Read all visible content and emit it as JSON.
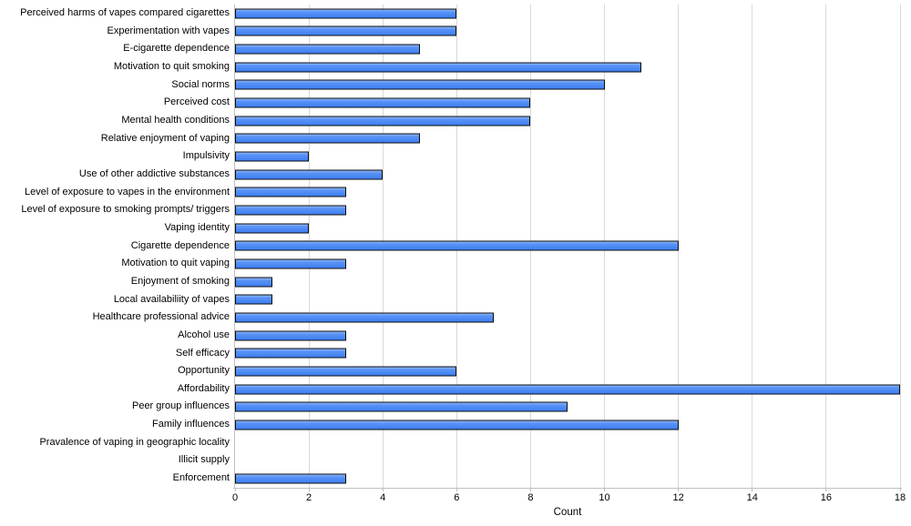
{
  "chart_data": {
    "type": "bar",
    "orientation": "horizontal",
    "title": "",
    "xlabel": "Count",
    "ylabel": "",
    "xlim": [
      0,
      18
    ],
    "xticks": [
      0,
      2,
      4,
      6,
      8,
      10,
      12,
      14,
      16,
      18
    ],
    "grid": "vertical-gridlines-on",
    "legend": "none",
    "categories": [
      "Perceived harms of vapes compared cigarettes",
      "Experimentation with vapes",
      "E-cigarette dependence",
      "Motivation to quit smoking",
      "Social norms",
      "Perceived cost",
      "Mental health conditions",
      "Relative enjoyment of vaping",
      "Impulsivity",
      "Use of other addictive substances",
      "Level of exposure to vapes in the environment",
      "Level of exposure to smoking prompts/ triggers",
      "Vaping identity",
      "Cigarette dependence",
      "Motivation to quit vaping",
      "Enjoyment of smoking",
      "Local availabiliity of vapes",
      "Healthcare professional advice",
      "Alcohol use",
      "Self efficacy",
      "Opportunity",
      "Affordability",
      "Peer group influences",
      "Family influences",
      "Pravalence of vaping in geographic locality",
      "Illicit supply",
      "Enforcement"
    ],
    "values": [
      6,
      6,
      5,
      11,
      10,
      8,
      8,
      5,
      2,
      4,
      3,
      3,
      2,
      12,
      3,
      1,
      1,
      7,
      3,
      3,
      6,
      18,
      9,
      12,
      0,
      0,
      3
    ]
  },
  "colors": {
    "bar_fill": "#4285f4",
    "bar_border": "#0d0d0d",
    "gridline": "#d9d9d9",
    "axis_line": "#bfbfbf",
    "text": "#000000",
    "background": "#ffffff"
  }
}
